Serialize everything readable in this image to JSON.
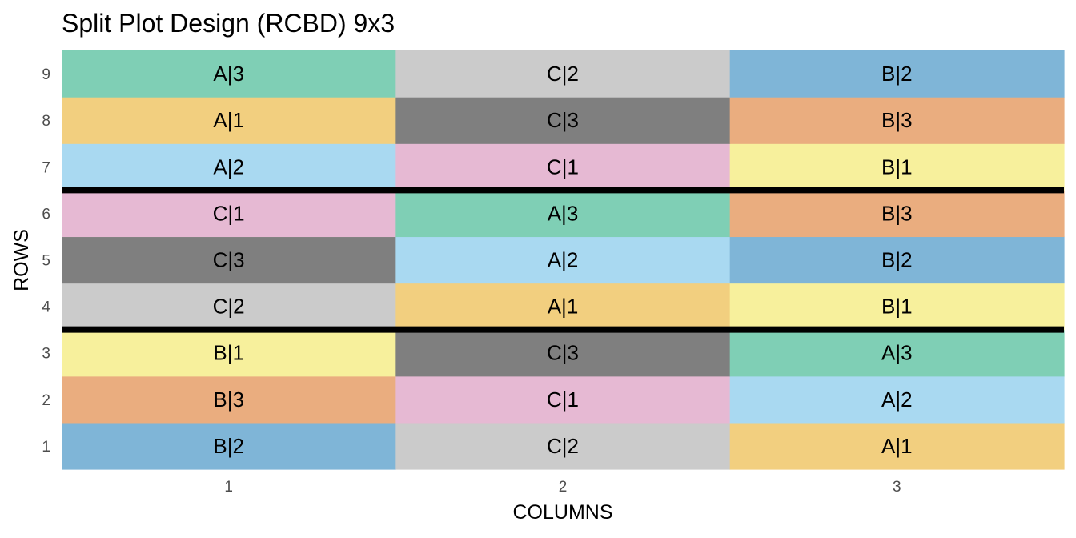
{
  "chart_data": {
    "type": "heatmap",
    "title": "Split Plot Design (RCBD) 9x3",
    "xlabel": "COLUMNS",
    "ylabel": "ROWS",
    "x_ticks": [
      "1",
      "2",
      "3"
    ],
    "y_ticks": [
      "1",
      "2",
      "3",
      "4",
      "5",
      "6",
      "7",
      "8",
      "9"
    ],
    "grid": false,
    "block_separators_after_rows": [
      3,
      6
    ],
    "treatment_colors": {
      "A|1": "#f2cf7f",
      "A|2": "#a9d9f1",
      "A|3": "#7fcfb5",
      "B|1": "#f7f09c",
      "B|2": "#7fb5d7",
      "B|3": "#eaad7f",
      "C|1": "#e6b9d3",
      "C|2": "#cbcbcb",
      "C|3": "#7f7f7f"
    },
    "cells": [
      {
        "row": 1,
        "col": 1,
        "label": "B|2"
      },
      {
        "row": 1,
        "col": 2,
        "label": "C|2"
      },
      {
        "row": 1,
        "col": 3,
        "label": "A|1"
      },
      {
        "row": 2,
        "col": 1,
        "label": "B|3"
      },
      {
        "row": 2,
        "col": 2,
        "label": "C|1"
      },
      {
        "row": 2,
        "col": 3,
        "label": "A|2"
      },
      {
        "row": 3,
        "col": 1,
        "label": "B|1"
      },
      {
        "row": 3,
        "col": 2,
        "label": "C|3"
      },
      {
        "row": 3,
        "col": 3,
        "label": "A|3"
      },
      {
        "row": 4,
        "col": 1,
        "label": "C|2"
      },
      {
        "row": 4,
        "col": 2,
        "label": "A|1"
      },
      {
        "row": 4,
        "col": 3,
        "label": "B|1"
      },
      {
        "row": 5,
        "col": 1,
        "label": "C|3"
      },
      {
        "row": 5,
        "col": 2,
        "label": "A|2"
      },
      {
        "row": 5,
        "col": 3,
        "label": "B|2"
      },
      {
        "row": 6,
        "col": 1,
        "label": "C|1"
      },
      {
        "row": 6,
        "col": 2,
        "label": "A|3"
      },
      {
        "row": 6,
        "col": 3,
        "label": "B|3"
      },
      {
        "row": 7,
        "col": 1,
        "label": "A|2"
      },
      {
        "row": 7,
        "col": 2,
        "label": "C|1"
      },
      {
        "row": 7,
        "col": 3,
        "label": "B|1"
      },
      {
        "row": 8,
        "col": 1,
        "label": "A|1"
      },
      {
        "row": 8,
        "col": 2,
        "label": "C|3"
      },
      {
        "row": 8,
        "col": 3,
        "label": "B|3"
      },
      {
        "row": 9,
        "col": 1,
        "label": "A|3"
      },
      {
        "row": 9,
        "col": 2,
        "label": "C|2"
      },
      {
        "row": 9,
        "col": 3,
        "label": "B|2"
      }
    ]
  }
}
